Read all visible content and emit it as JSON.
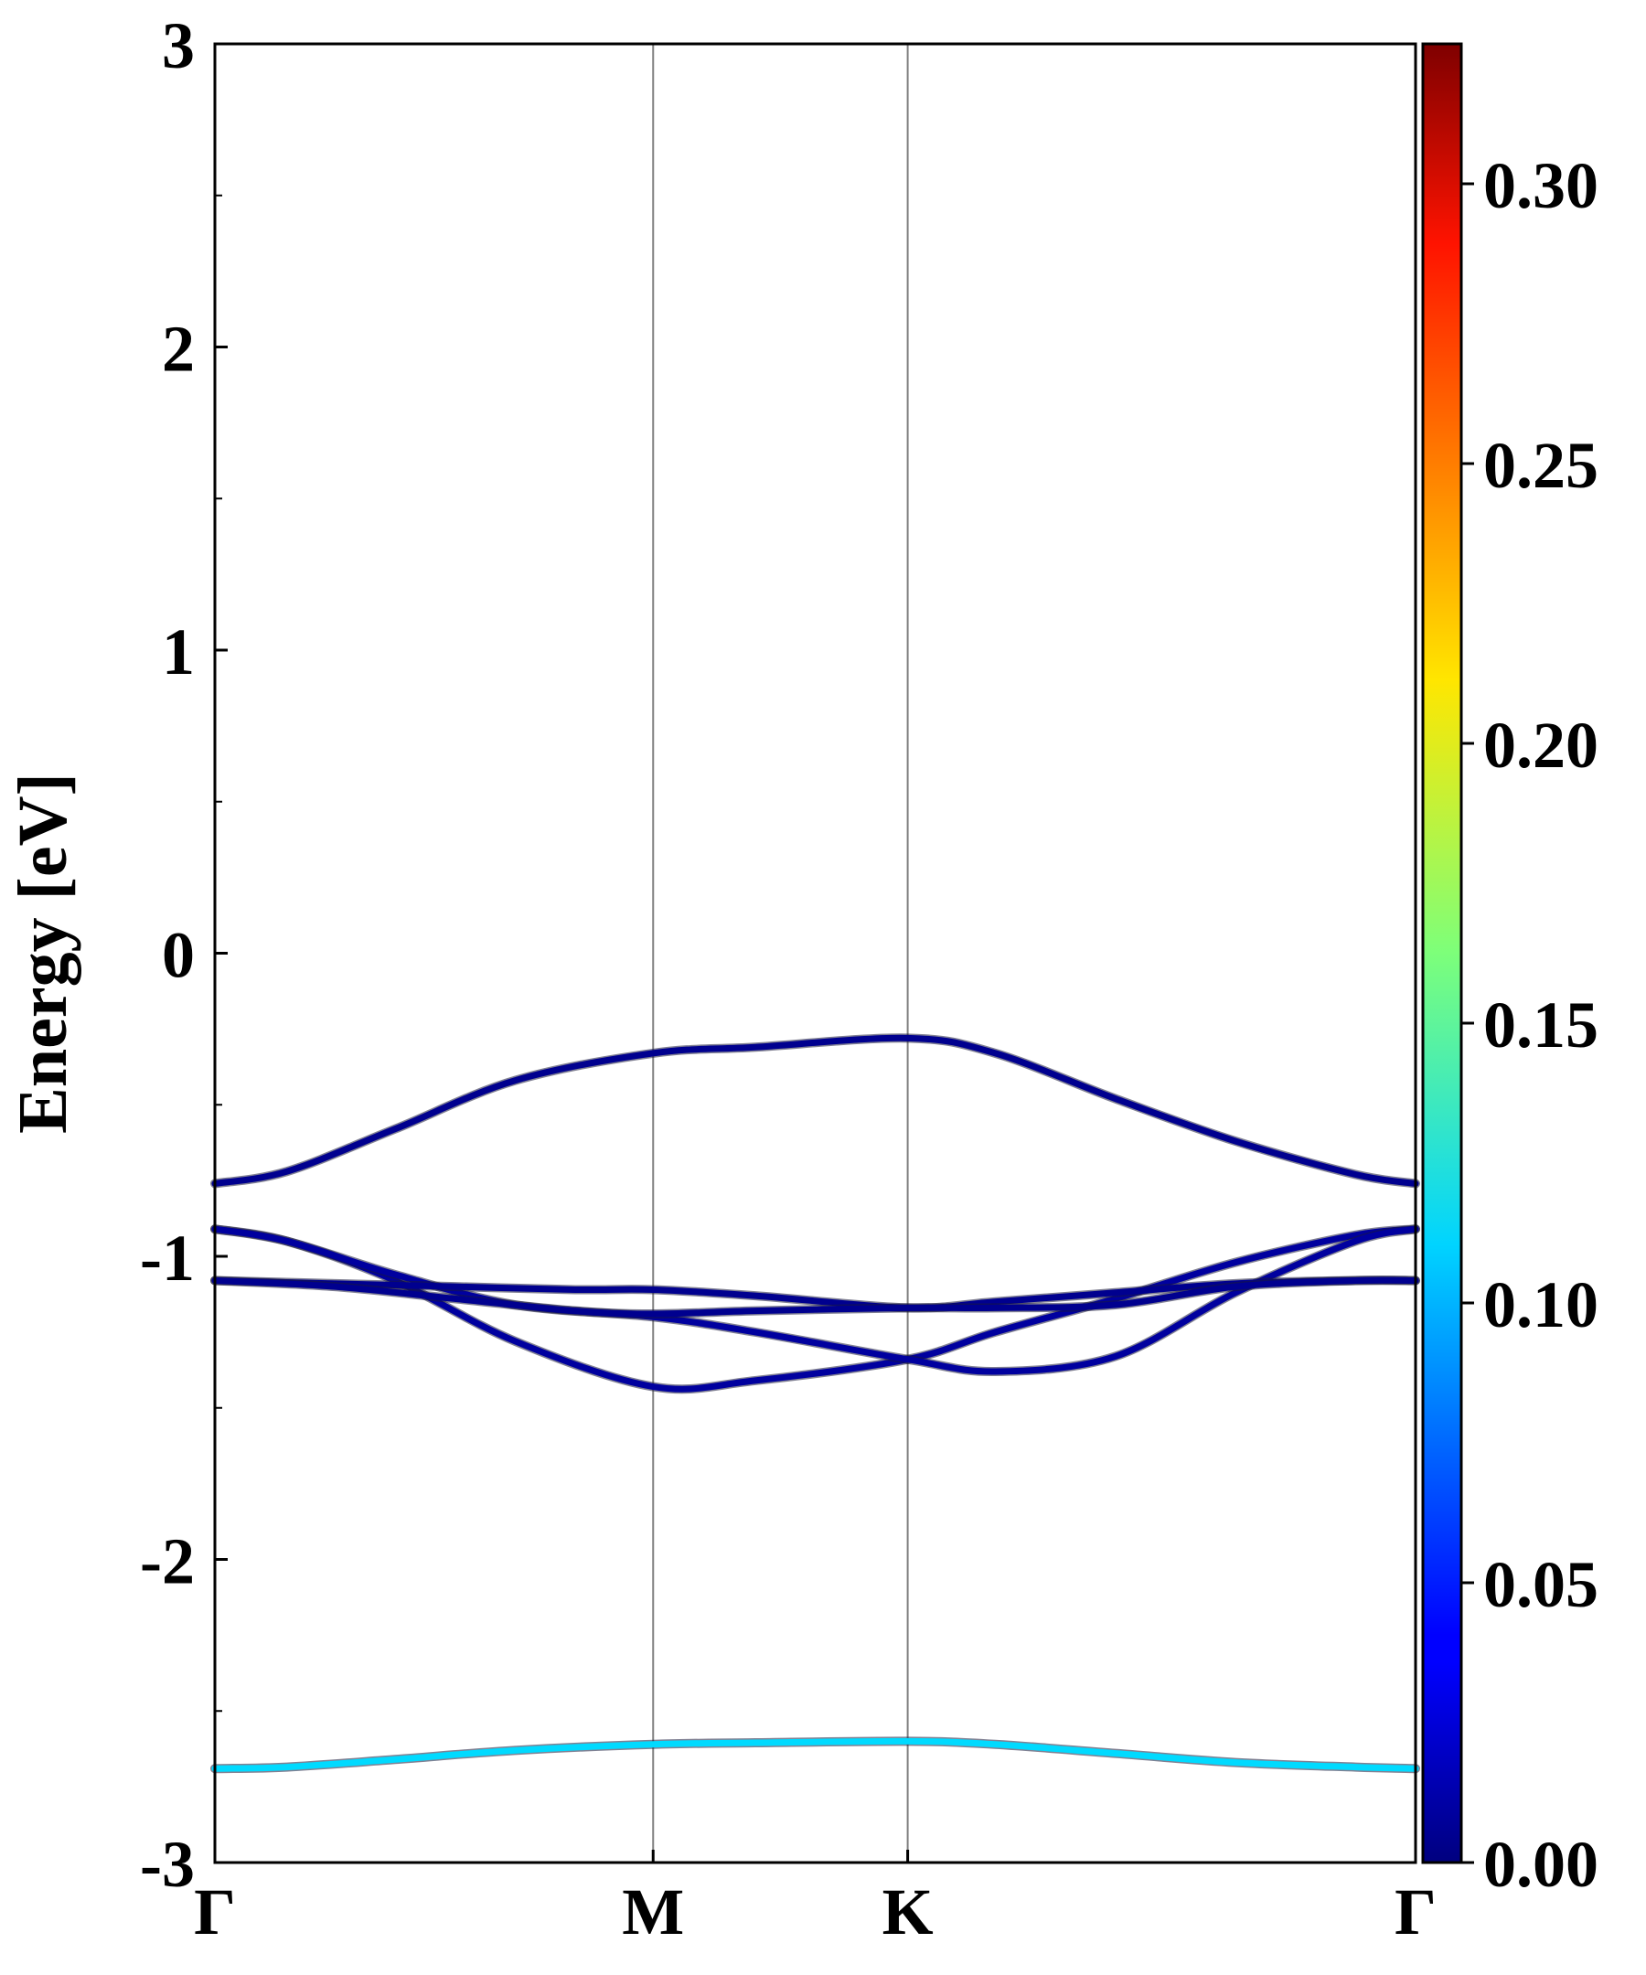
{
  "chart_data": {
    "type": "line",
    "title": "",
    "xlabel": "",
    "ylabel": "Energy [eV]",
    "ylim": [
      -3,
      3
    ],
    "xlim": [
      0,
      1
    ],
    "y_ticks": [
      {
        "value": -3,
        "label": "-3"
      },
      {
        "value": -2,
        "label": "-2"
      },
      {
        "value": -1,
        "label": "-1"
      },
      {
        "value": 0,
        "label": "0"
      },
      {
        "value": 1,
        "label": "1"
      },
      {
        "value": 2,
        "label": "2"
      },
      {
        "value": 3,
        "label": "3"
      }
    ],
    "x_ticks": [
      {
        "value": 0,
        "label": "Γ"
      },
      {
        "value": 0.365,
        "label": "M"
      },
      {
        "value": 0.577,
        "label": "K"
      },
      {
        "value": 1,
        "label": "Γ"
      }
    ],
    "vertical_lines_at": [
      0.365,
      0.577
    ],
    "grid": false,
    "series": [
      {
        "weight": 0.005,
        "x": [
          0,
          0.06,
          0.15,
          0.25,
          0.365,
          0.45,
          0.577,
          0.65,
          0.75,
          0.85,
          0.95,
          1.0
        ],
        "y": [
          -0.76,
          -0.72,
          -0.58,
          -0.42,
          -0.33,
          -0.31,
          -0.28,
          -0.33,
          -0.48,
          -0.62,
          -0.73,
          -0.76
        ]
      },
      {
        "weight": 0.01,
        "x": [
          0,
          0.06,
          0.15,
          0.25,
          0.365,
          0.45,
          0.577,
          0.65,
          0.75,
          0.85,
          0.95,
          1.0
        ],
        "y": [
          -0.91,
          -0.95,
          -1.08,
          -1.28,
          -1.43,
          -1.41,
          -1.34,
          -1.25,
          -1.14,
          -1.02,
          -0.93,
          -0.91
        ]
      },
      {
        "weight": 0.01,
        "x": [
          0,
          0.06,
          0.15,
          0.25,
          0.365,
          0.45,
          0.577,
          0.65,
          0.75,
          0.85,
          0.95,
          1.0
        ],
        "y": [
          -0.91,
          -0.95,
          -1.06,
          -1.16,
          -1.2,
          -1.25,
          -1.34,
          -1.38,
          -1.33,
          -1.12,
          -0.95,
          -0.91
        ]
      },
      {
        "weight": 0.005,
        "x": [
          0,
          0.1,
          0.2,
          0.3,
          0.365,
          0.45,
          0.577,
          0.65,
          0.75,
          0.85,
          0.95,
          1.0
        ],
        "y": [
          -1.08,
          -1.09,
          -1.1,
          -1.11,
          -1.11,
          -1.13,
          -1.17,
          -1.15,
          -1.12,
          -1.09,
          -1.08,
          -1.08
        ]
      },
      {
        "weight": 0.005,
        "x": [
          0,
          0.1,
          0.2,
          0.3,
          0.365,
          0.45,
          0.577,
          0.65,
          0.75,
          0.85,
          0.95,
          1.0
        ],
        "y": [
          -1.08,
          -1.1,
          -1.14,
          -1.18,
          -1.19,
          -1.18,
          -1.17,
          -1.17,
          -1.16,
          -1.1,
          -1.08,
          -1.08
        ]
      },
      {
        "weight": 0.11,
        "x": [
          0,
          0.06,
          0.15,
          0.25,
          0.365,
          0.45,
          0.577,
          0.65,
          0.75,
          0.85,
          0.95,
          1.0
        ],
        "y": [
          -2.69,
          -2.685,
          -2.66,
          -2.63,
          -2.61,
          -2.605,
          -2.6,
          -2.61,
          -2.64,
          -2.67,
          -2.685,
          -2.69
        ]
      }
    ],
    "colorbar": {
      "min": 0,
      "max": 0.325,
      "colormap": "jet",
      "ticks": [
        {
          "value": 0.0,
          "label": "0.00"
        },
        {
          "value": 0.05,
          "label": "0.05"
        },
        {
          "value": 0.1,
          "label": "0.10"
        },
        {
          "value": 0.15,
          "label": "0.15"
        },
        {
          "value": 0.2,
          "label": "0.20"
        },
        {
          "value": 0.25,
          "label": "0.25"
        },
        {
          "value": 0.3,
          "label": "0.30"
        }
      ]
    },
    "colors": {
      "axis": "#000000",
      "vline": "#808080"
    }
  }
}
